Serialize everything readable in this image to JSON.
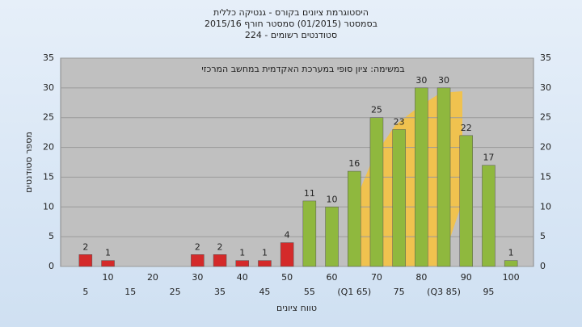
{
  "chart_data": {
    "type": "bar",
    "title": [
      "היסטוגרמת ציונים בקורס - גנטיקה כללית",
      "בסמסטר (01/2015) סמסטר חורף 2015/16",
      "סטודנטים רשומים - 224"
    ],
    "annotation": "במשימה: ציון סופי במערכת האקדמית במחשב המרכזי",
    "x_label": "טווח ציונים",
    "y_label": "מספר סטודנטים",
    "categories": [
      "5",
      "10",
      "15",
      "20",
      "25",
      "30",
      "35",
      "40",
      "45",
      "50",
      "55",
      "60",
      "(Q1 65)",
      "70",
      "75",
      "80",
      "(Q3 85)",
      "90",
      "95",
      "100"
    ],
    "values": [
      2,
      1,
      0,
      0,
      0,
      2,
      2,
      1,
      1,
      4,
      11,
      10,
      16,
      25,
      23,
      30,
      30,
      22,
      17,
      1
    ],
    "colors": [
      "#d42a2a",
      "#d42a2a",
      "#d42a2a",
      "#d42a2a",
      "#d42a2a",
      "#d42a2a",
      "#d42a2a",
      "#d42a2a",
      "#d42a2a",
      "#d42a2a",
      "#8fb83e",
      "#8fb83e",
      "#8fb83e",
      "#8fb83e",
      "#8fb83e",
      "#8fb83e",
      "#8fb83e",
      "#8fb83e",
      "#8fb83e",
      "#8fb83e"
    ],
    "ylim": [
      0,
      35
    ],
    "yticks": [
      0,
      5,
      10,
      15,
      20,
      25,
      30,
      35
    ],
    "grid": true
  }
}
